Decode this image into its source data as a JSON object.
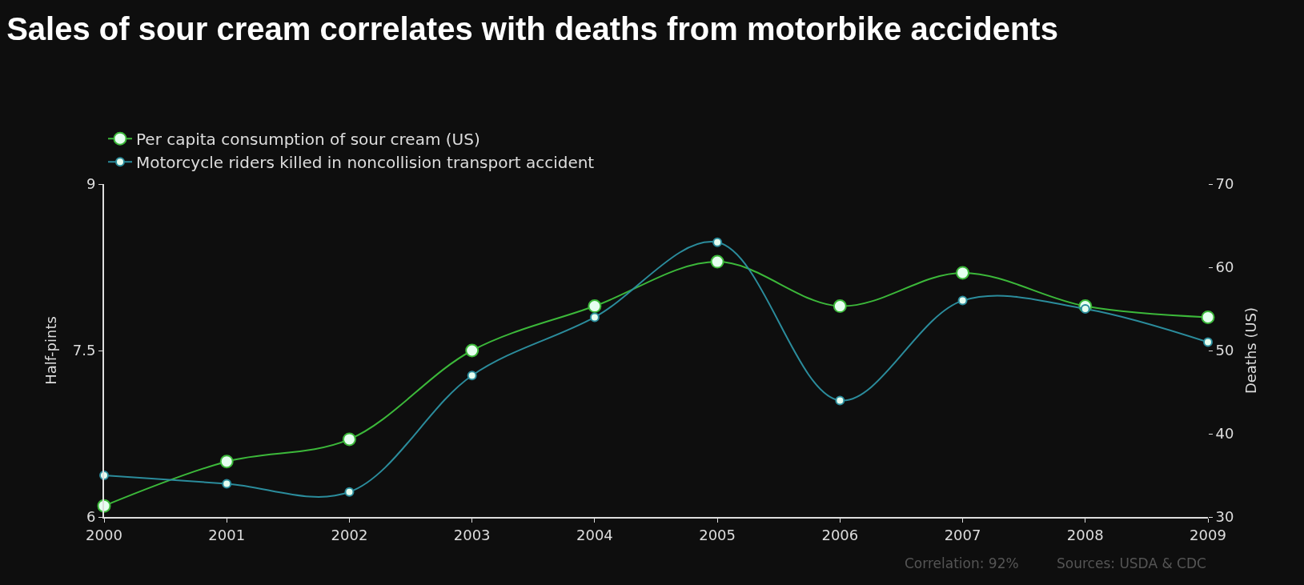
{
  "chart_data": {
    "type": "line",
    "title": "Sales of sour cream correlates with deaths from motorbike accidents",
    "ylabel": "Half-pints",
    "y2label": "Deaths (US)",
    "x": [
      2000,
      2001,
      2002,
      2003,
      2004,
      2005,
      2006,
      2007,
      2008,
      2009
    ],
    "series": [
      {
        "name": "Per capita consumption of sour cream (US)",
        "color": "#3cb83a",
        "values": [
          6.1,
          6.5,
          6.7,
          7.5,
          7.9,
          8.3,
          7.9,
          8.2,
          7.9,
          7.8
        ]
      },
      {
        "name": "Motorcycle riders killed in noncollision transport accident",
        "color": "#2b8c9c",
        "axis": "y2",
        "values": [
          35,
          34,
          33,
          47,
          54,
          63,
          44,
          56,
          55,
          51
        ]
      }
    ],
    "xlim": [
      2000,
      2009
    ],
    "xticks": [
      2000,
      2001,
      2002,
      2003,
      2004,
      2005,
      2006,
      2007,
      2008,
      2009
    ],
    "ylim": [
      6,
      9
    ],
    "yticks": [
      6,
      7.5,
      9
    ],
    "y2lim": [
      30,
      70
    ],
    "y2ticks": [
      30,
      40,
      50,
      60,
      70
    ],
    "grid": false,
    "legend": "top left",
    "marker": "circle",
    "annotations": [
      "Correlation: 92%",
      "Sources: USDA & CDC"
    ]
  }
}
